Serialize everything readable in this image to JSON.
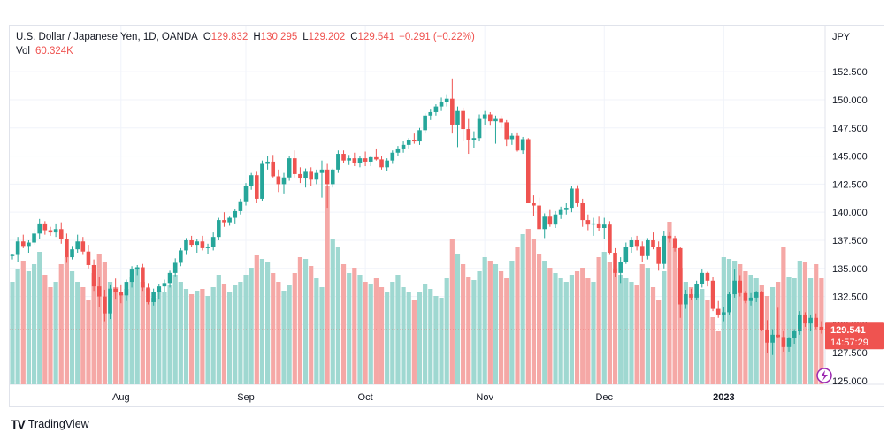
{
  "header": {
    "symbol": "U.S. Dollar / Japanese Yen, 1D, OANDA",
    "open_label": "O",
    "open": "129.832",
    "high_label": "H",
    "high": "130.295",
    "low_label": "L",
    "low": "129.202",
    "close_label": "C",
    "close": "129.541",
    "change": "−0.291 (−0.22%)",
    "vol_label": "Vol",
    "vol": "60.324K"
  },
  "price_badge": {
    "price": "129.541",
    "countdown": "14:57:29"
  },
  "footer": {
    "brand": "TradingView"
  },
  "colors": {
    "up": "#26a69a",
    "down": "#ef5350",
    "vol_up": "#9fd8d1",
    "vol_down": "#f5a8a6",
    "grid": "#f0f3fa",
    "text": "#131722"
  },
  "chart_data": {
    "type": "candlestick",
    "y_unit": "JPY",
    "y_range": [
      125,
      153.3
    ],
    "y_ticks": [
      "125.000",
      "127.500",
      "130.000",
      "132.500",
      "135.000",
      "137.500",
      "140.000",
      "142.500",
      "145.000",
      "147.500",
      "150.000",
      "152.500"
    ],
    "x_ticks": [
      {
        "label": "Aug",
        "index": 20
      },
      {
        "label": "Sep",
        "index": 43
      },
      {
        "label": "Oct",
        "index": 65
      },
      {
        "label": "Nov",
        "index": 87
      },
      {
        "label": "Dec",
        "index": 109
      },
      {
        "label": "2023",
        "index": 131
      }
    ],
    "last_price": 129.541,
    "candles": [
      [
        136.1,
        136.3,
        135.8,
        136.2
      ],
      [
        136.2,
        137.8,
        135.6,
        137.4
      ],
      [
        137.4,
        138.0,
        136.8,
        137.0
      ],
      [
        137.0,
        137.5,
        136.4,
        137.3
      ],
      [
        137.3,
        138.5,
        137.1,
        138.1
      ],
      [
        138.1,
        139.4,
        137.6,
        139.0
      ],
      [
        139.0,
        139.2,
        138.0,
        138.4
      ],
      [
        138.4,
        138.7,
        137.9,
        138.2
      ],
      [
        138.2,
        139.0,
        137.8,
        138.5
      ],
      [
        138.5,
        139.1,
        137.2,
        137.6
      ],
      [
        137.6,
        138.1,
        135.5,
        136.0
      ],
      [
        136.0,
        137.0,
        135.8,
        136.7
      ],
      [
        136.7,
        138.0,
        136.4,
        137.4
      ],
      [
        137.4,
        137.8,
        136.2,
        136.5
      ],
      [
        136.5,
        137.1,
        135.0,
        135.3
      ],
      [
        135.3,
        135.8,
        133.0,
        133.4
      ],
      [
        133.4,
        134.2,
        131.6,
        132.5
      ],
      [
        132.5,
        133.1,
        130.3,
        131.0
      ],
      [
        131.0,
        133.5,
        130.5,
        133.2
      ],
      [
        133.2,
        134.1,
        132.3,
        132.9
      ],
      [
        132.9,
        133.5,
        131.9,
        132.6
      ],
      [
        132.6,
        134.0,
        132.1,
        133.8
      ],
      [
        133.8,
        135.2,
        133.3,
        134.9
      ],
      [
        134.9,
        135.3,
        134.4,
        135.1
      ],
      [
        135.1,
        135.4,
        133.0,
        133.3
      ],
      [
        133.3,
        133.7,
        131.8,
        132.0
      ],
      [
        132.0,
        133.2,
        131.7,
        132.9
      ],
      [
        132.9,
        133.6,
        132.3,
        133.4
      ],
      [
        133.4,
        134.0,
        132.9,
        133.7
      ],
      [
        133.7,
        134.8,
        133.3,
        134.6
      ],
      [
        134.6,
        135.9,
        134.3,
        135.5
      ],
      [
        135.5,
        136.8,
        135.2,
        136.6
      ],
      [
        136.6,
        137.7,
        136.2,
        137.5
      ],
      [
        137.5,
        137.9,
        136.9,
        137.1
      ],
      [
        137.1,
        137.6,
        136.4,
        137.4
      ],
      [
        137.4,
        137.9,
        136.6,
        136.8
      ],
      [
        136.8,
        137.2,
        136.3,
        136.9
      ],
      [
        136.9,
        138.2,
        136.6,
        137.8
      ],
      [
        137.8,
        139.5,
        137.5,
        139.3
      ],
      [
        139.3,
        140.0,
        138.7,
        139.1
      ],
      [
        139.1,
        139.6,
        138.8,
        139.5
      ],
      [
        139.5,
        140.3,
        139.0,
        140.1
      ],
      [
        140.1,
        141.2,
        139.8,
        140.9
      ],
      [
        140.9,
        142.6,
        140.6,
        142.3
      ],
      [
        142.3,
        143.5,
        142.0,
        143.3
      ],
      [
        143.3,
        143.6,
        140.8,
        141.2
      ],
      [
        141.2,
        144.6,
        141.0,
        144.3
      ],
      [
        144.3,
        145.0,
        143.8,
        144.5
      ],
      [
        144.5,
        145.1,
        143.1,
        143.2
      ],
      [
        143.2,
        143.8,
        141.8,
        142.5
      ],
      [
        142.5,
        143.5,
        141.6,
        143.1
      ],
      [
        143.1,
        145.0,
        142.8,
        144.8
      ],
      [
        144.8,
        145.5,
        143.1,
        143.4
      ],
      [
        143.4,
        144.0,
        142.6,
        143.0
      ],
      [
        143.0,
        143.9,
        142.2,
        143.6
      ],
      [
        143.6,
        144.0,
        142.3,
        142.9
      ],
      [
        142.9,
        143.8,
        142.5,
        143.5
      ],
      [
        143.5,
        144.6,
        141.3,
        143.8
      ],
      [
        143.8,
        144.3,
        140.4,
        142.5
      ],
      [
        142.5,
        143.9,
        142.2,
        143.8
      ],
      [
        143.8,
        145.5,
        143.5,
        145.2
      ],
      [
        145.2,
        145.5,
        144.4,
        144.6
      ],
      [
        144.6,
        145.1,
        144.2,
        144.8
      ],
      [
        144.8,
        145.3,
        144.1,
        144.4
      ],
      [
        144.4,
        145.0,
        144.0,
        144.8
      ],
      [
        144.8,
        145.4,
        144.1,
        144.5
      ],
      [
        144.5,
        145.0,
        144.1,
        144.9
      ],
      [
        144.9,
        145.6,
        144.6,
        144.7
      ],
      [
        144.7,
        145.0,
        143.8,
        144.0
      ],
      [
        144.0,
        144.8,
        143.7,
        144.6
      ],
      [
        144.6,
        145.5,
        144.3,
        145.3
      ],
      [
        145.3,
        145.9,
        145.0,
        145.6
      ],
      [
        145.6,
        146.3,
        145.3,
        146.0
      ],
      [
        146.0,
        146.6,
        145.6,
        146.4
      ],
      [
        146.4,
        147.0,
        146.1,
        146.3
      ],
      [
        146.3,
        147.5,
        146.0,
        147.3
      ],
      [
        147.3,
        148.8,
        147.0,
        148.6
      ],
      [
        148.6,
        149.2,
        148.2,
        148.9
      ],
      [
        148.9,
        149.6,
        148.6,
        149.4
      ],
      [
        149.4,
        150.2,
        149.0,
        149.8
      ],
      [
        149.8,
        150.5,
        149.4,
        150.1
      ],
      [
        150.1,
        151.9,
        147.0,
        147.8
      ],
      [
        147.8,
        149.4,
        145.8,
        149.0
      ],
      [
        149.0,
        149.3,
        146.3,
        147.4
      ],
      [
        147.4,
        148.3,
        145.2,
        146.4
      ],
      [
        146.4,
        147.2,
        145.7,
        146.6
      ],
      [
        146.6,
        148.7,
        146.3,
        148.3
      ],
      [
        148.3,
        149.0,
        147.8,
        148.7
      ],
      [
        148.7,
        148.9,
        147.7,
        148.1
      ],
      [
        148.1,
        148.6,
        146.1,
        148.3
      ],
      [
        148.3,
        148.6,
        147.5,
        148.0
      ],
      [
        148.0,
        148.2,
        145.9,
        146.5
      ],
      [
        146.5,
        147.0,
        146.0,
        146.8
      ],
      [
        146.8,
        147.1,
        145.4,
        145.5
      ],
      [
        145.5,
        146.7,
        145.2,
        146.5
      ],
      [
        146.5,
        146.6,
        140.8,
        140.8
      ],
      [
        140.8,
        141.5,
        139.7,
        140.6
      ],
      [
        140.6,
        141.3,
        138.5,
        138.5
      ],
      [
        138.5,
        139.9,
        137.7,
        139.6
      ],
      [
        139.6,
        140.2,
        138.7,
        138.9
      ],
      [
        138.9,
        140.1,
        138.6,
        139.8
      ],
      [
        139.8,
        140.5,
        139.4,
        140.2
      ],
      [
        140.2,
        140.8,
        139.8,
        140.4
      ],
      [
        140.4,
        142.3,
        140.0,
        142.1
      ],
      [
        142.1,
        142.4,
        140.5,
        140.8
      ],
      [
        140.8,
        141.2,
        138.7,
        139.3
      ],
      [
        139.3,
        139.8,
        138.4,
        138.9
      ],
      [
        138.9,
        139.5,
        137.9,
        139.0
      ],
      [
        139.0,
        139.6,
        138.3,
        138.6
      ],
      [
        138.6,
        139.5,
        137.6,
        138.9
      ],
      [
        138.9,
        139.2,
        136.2,
        136.4
      ],
      [
        136.4,
        136.8,
        134.2,
        134.6
      ],
      [
        134.6,
        136.0,
        133.7,
        135.6
      ],
      [
        135.6,
        137.3,
        135.4,
        136.9
      ],
      [
        136.9,
        137.8,
        136.4,
        137.5
      ],
      [
        137.5,
        137.9,
        136.6,
        137.0
      ],
      [
        137.0,
        137.4,
        135.6,
        136.1
      ],
      [
        136.1,
        137.7,
        135.8,
        137.5
      ],
      [
        137.5,
        138.2,
        136.7,
        136.9
      ],
      [
        136.9,
        137.4,
        134.8,
        135.4
      ],
      [
        135.4,
        138.3,
        135.0,
        137.9
      ],
      [
        137.9,
        138.2,
        137.3,
        137.7
      ],
      [
        137.7,
        137.9,
        136.5,
        136.8
      ],
      [
        136.8,
        136.9,
        130.6,
        131.8
      ],
      [
        131.8,
        133.1,
        131.4,
        132.7
      ],
      [
        132.7,
        133.2,
        132.2,
        132.4
      ],
      [
        132.4,
        133.9,
        132.2,
        133.6
      ],
      [
        133.6,
        134.9,
        133.3,
        134.6
      ],
      [
        134.6,
        134.7,
        133.4,
        133.9
      ],
      [
        133.9,
        134.2,
        131.2,
        131.4
      ],
      [
        131.4,
        132.1,
        130.6,
        130.9
      ],
      [
        130.9,
        131.6,
        130.3,
        131.1
      ],
      [
        131.1,
        132.9,
        130.9,
        132.7
      ],
      [
        132.7,
        134.9,
        132.4,
        133.9
      ],
      [
        133.9,
        134.4,
        132.5,
        132.8
      ],
      [
        132.8,
        133.0,
        131.9,
        132.1
      ],
      [
        132.1,
        132.8,
        131.7,
        132.4
      ],
      [
        132.4,
        133.0,
        132.0,
        132.9
      ],
      [
        132.9,
        133.0,
        129.4,
        129.5
      ],
      [
        129.5,
        130.4,
        127.5,
        128.4
      ],
      [
        128.4,
        129.6,
        127.3,
        129.1
      ],
      [
        129.1,
        131.5,
        128.8,
        128.9
      ],
      [
        128.9,
        129.4,
        127.6,
        128.0
      ],
      [
        128.0,
        128.9,
        127.6,
        128.8
      ],
      [
        128.8,
        129.6,
        128.3,
        129.4
      ],
      [
        129.4,
        131.2,
        129.1,
        130.9
      ],
      [
        130.9,
        131.1,
        129.8,
        130.1
      ],
      [
        130.1,
        130.9,
        129.4,
        130.6
      ],
      [
        130.6,
        131.0,
        129.6,
        129.8
      ],
      [
        129.8,
        130.3,
        129.2,
        129.5
      ]
    ],
    "volume_range": [
      0,
      165
    ],
    "volume": [
      58,
      65,
      70,
      64,
      68,
      75,
      62,
      55,
      58,
      68,
      72,
      64,
      58,
      55,
      48,
      63,
      74,
      69,
      58,
      55,
      51,
      54,
      61,
      66,
      58,
      54,
      49,
      53,
      52,
      56,
      62,
      58,
      54,
      51,
      53,
      54,
      50,
      55,
      62,
      57,
      52,
      56,
      58,
      62,
      66,
      73,
      71,
      69,
      63,
      58,
      53,
      56,
      63,
      72,
      71,
      67,
      60,
      55,
      112,
      82,
      78,
      68,
      63,
      66,
      62,
      58,
      57,
      60,
      55,
      52,
      58,
      62,
      55,
      52,
      48,
      52,
      57,
      54,
      50,
      49,
      60,
      82,
      74,
      68,
      61,
      59,
      64,
      72,
      70,
      68,
      64,
      60,
      70,
      78,
      85,
      88,
      82,
      74,
      70,
      66,
      63,
      60,
      58,
      62,
      64,
      66,
      60,
      58,
      72,
      75,
      69,
      65,
      62,
      60,
      58,
      56,
      68,
      66,
      55,
      48,
      64,
      92,
      78,
      66,
      58,
      55,
      51,
      54,
      48,
      38,
      30,
      72,
      71,
      70,
      68,
      64,
      62,
      60,
      56,
      50,
      55,
      58,
      78,
      61,
      60,
      70,
      69,
      60,
      68,
      60
    ]
  }
}
